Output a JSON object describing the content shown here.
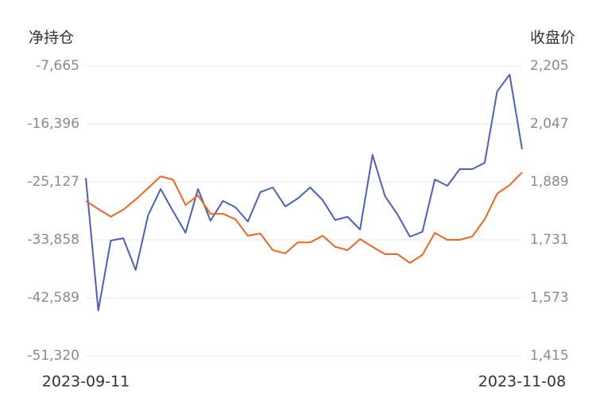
{
  "chart_data": {
    "type": "line",
    "y_label": "净持仓",
    "y2_label": "收盘价",
    "categories": [
      "2023-09-11",
      null,
      null,
      null,
      null,
      null,
      null,
      null,
      null,
      null,
      null,
      null,
      null,
      null,
      null,
      null,
      null,
      null,
      null,
      null,
      null,
      null,
      null,
      null,
      null,
      null,
      null,
      null,
      null,
      null,
      null,
      null,
      null,
      null,
      null,
      "2023-11-08"
    ],
    "series": [
      {
        "color": "#4a5fc1",
        "values": [
          -24529,
          -44502,
          -33977,
          -33618,
          -38402,
          -30150,
          -26203,
          -29552,
          -32781,
          -26203,
          -30987,
          -27997,
          -28954,
          -31107,
          -26681,
          -25964,
          -28834,
          -27638,
          -25964,
          -27877,
          -30867,
          -30389,
          -32303,
          -21060,
          -27279,
          -30030,
          -33379,
          -32661,
          -24768,
          -25725,
          -23213,
          -23213,
          -22256,
          -11492,
          -8981,
          -20223
        ]
      },
      {
        "color": "#f4631a",
        "axis": "y2",
        "values": [
          1837,
          1815,
          1794,
          1813,
          1841,
          1872,
          1904,
          1895,
          1826,
          1852,
          1802,
          1802,
          1787,
          1742,
          1748,
          1703,
          1694,
          1724,
          1724,
          1742,
          1712,
          1703,
          1733,
          1712,
          1692,
          1692,
          1668,
          1690,
          1750,
          1731,
          1731,
          1740,
          1787,
          1857,
          1880,
          1915
        ]
      }
    ],
    "ylim": [
      -51320,
      -7665
    ],
    "yticks": [
      {
        "value": -7665,
        "label": "-7,665"
      },
      {
        "value": -16396,
        "label": "-16,396"
      },
      {
        "value": -25127,
        "label": "-25,127"
      },
      {
        "value": -33858,
        "label": "-33,858"
      },
      {
        "value": -42589,
        "label": "-42,589"
      },
      {
        "value": -51320,
        "label": "-51,320"
      }
    ],
    "y2lim": [
      1415,
      2205
    ],
    "y2ticks": [
      {
        "value": 2205,
        "label": "2,205"
      },
      {
        "value": 2047,
        "label": "2,047"
      },
      {
        "value": 1889,
        "label": "1,889"
      },
      {
        "value": 1731,
        "label": "1,731"
      },
      {
        "value": 1573,
        "label": "1,573"
      },
      {
        "value": 1415,
        "label": "1,415"
      }
    ],
    "grid": true
  }
}
